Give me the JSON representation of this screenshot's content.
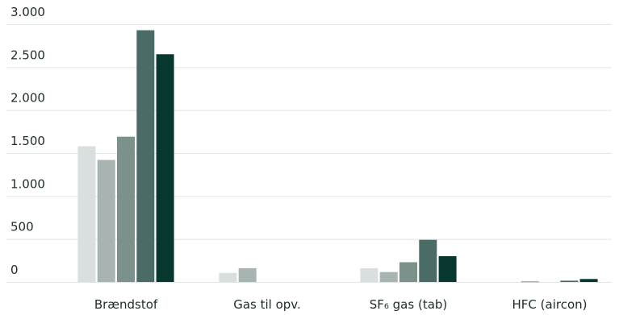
{
  "chart_data": {
    "type": "bar",
    "title": "",
    "xlabel": "",
    "ylabel": "",
    "ylim": [
      0,
      3000
    ],
    "y_ticks": [
      {
        "value": 0,
        "label": "0"
      },
      {
        "value": 500,
        "label": "500"
      },
      {
        "value": 1000,
        "label": "1.000"
      },
      {
        "value": 1500,
        "label": "1.500"
      },
      {
        "value": 2000,
        "label": "2.000"
      },
      {
        "value": 2500,
        "label": "2.500"
      },
      {
        "value": 3000,
        "label": "3.000"
      }
    ],
    "grid": true,
    "legend": "none",
    "categories": [
      "Brændstof",
      "Gas til opv.",
      "SF₆ gas (tab)",
      "HFC (aircon)"
    ],
    "series": [
      {
        "color": "#d8dfde",
        "values": [
          1580,
          105,
          160,
          0
        ]
      },
      {
        "color": "#a7b4b1",
        "values": [
          1420,
          160,
          115,
          10
        ]
      },
      {
        "color": "#7a918c",
        "values": [
          1690,
          0,
          230,
          0
        ]
      },
      {
        "color": "#4b6b66",
        "values": [
          2930,
          0,
          490,
          15
        ]
      },
      {
        "color": "#06382f",
        "values": [
          2650,
          0,
          300,
          35
        ]
      }
    ]
  }
}
